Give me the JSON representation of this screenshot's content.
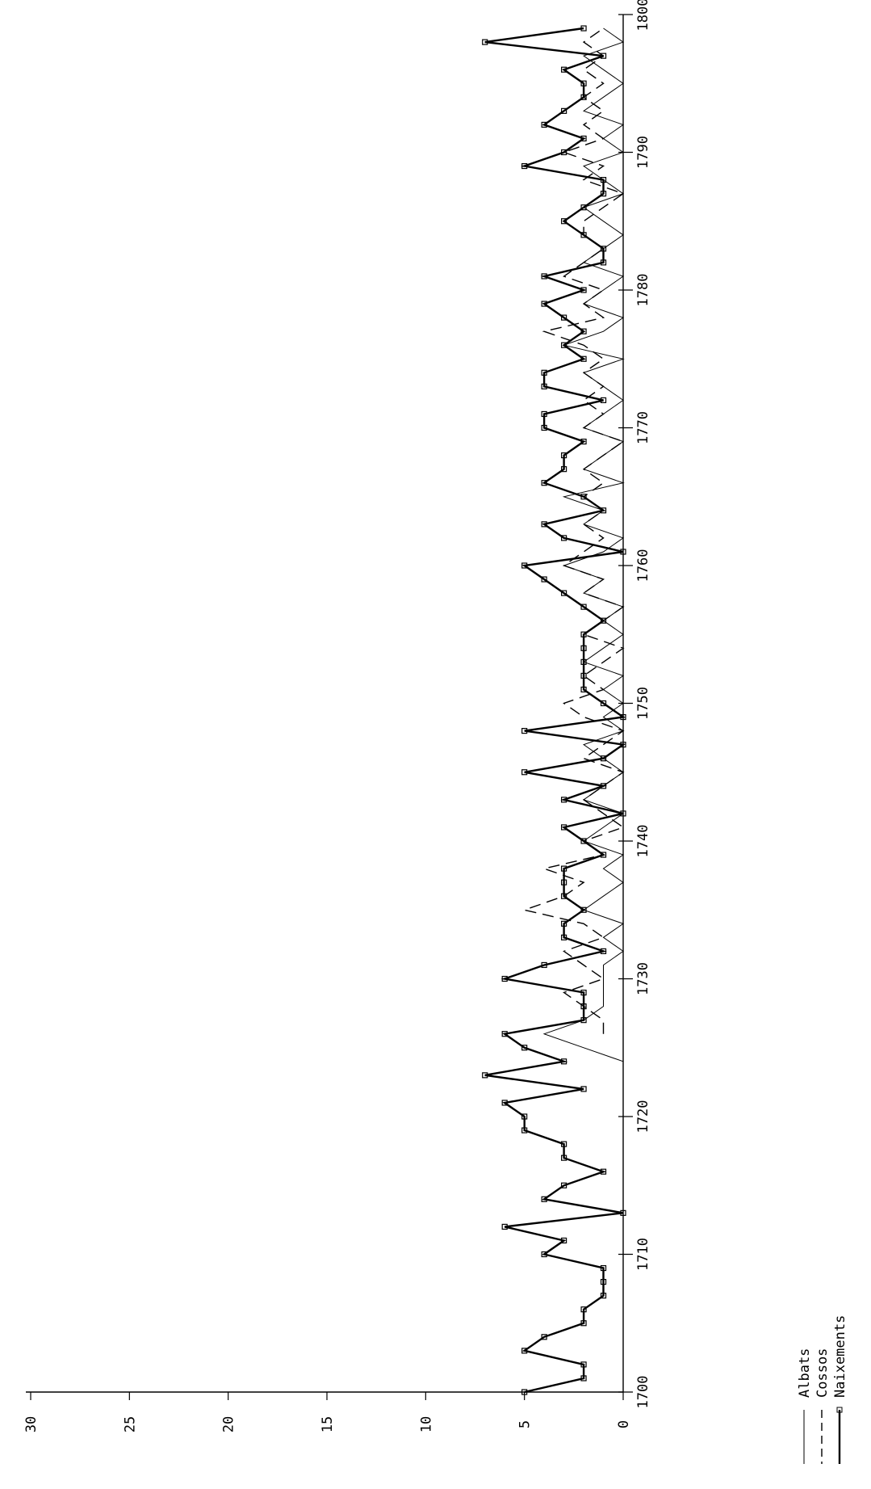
{
  "chart_data": {
    "type": "line",
    "orientation": "rotated-90",
    "title": "",
    "xlabel": "",
    "ylabel": "",
    "x_ticks": [
      "1700",
      "1710",
      "1720",
      "1730",
      "1740",
      "1750",
      "1760",
      "1770",
      "1780",
      "1790",
      "1800"
    ],
    "y_ticks": [
      "0",
      "5",
      "10",
      "15",
      "20",
      "25",
      "30"
    ],
    "xlim": [
      1700,
      1800
    ],
    "ylim": [
      0,
      30
    ],
    "grid": false,
    "legend_position": "bottom-right",
    "series": [
      {
        "name": "Albats",
        "style": "thin-solid",
        "x": [
          1724,
          1725,
          1726,
          1727,
          1728,
          1731,
          1732,
          1733,
          1734,
          1735,
          1736,
          1737,
          1738,
          1739,
          1740,
          1741,
          1742,
          1743,
          1744,
          1745,
          1746,
          1747,
          1748,
          1749,
          1750,
          1751,
          1752,
          1753,
          1754,
          1755,
          1756,
          1757,
          1758,
          1759,
          1760,
          1761,
          1762,
          1763,
          1764,
          1765,
          1766,
          1767,
          1768,
          1769,
          1770,
          1771,
          1772,
          1773,
          1774,
          1775,
          1776,
          1777,
          1778,
          1779,
          1780,
          1781,
          1782,
          1783,
          1784,
          1785,
          1786,
          1787,
          1788,
          1789,
          1790,
          1791,
          1792,
          1793,
          1794,
          1795,
          1796,
          1797,
          1798,
          1799
        ],
        "y": [
          0,
          2,
          4,
          2,
          1,
          1,
          0,
          1,
          0,
          2,
          1,
          0,
          1,
          0,
          2,
          1,
          0,
          2,
          1,
          0,
          1,
          2,
          0,
          1,
          0,
          1,
          0,
          2,
          1,
          0,
          1,
          0,
          2,
          1,
          3,
          1,
          0,
          2,
          1,
          3,
          0,
          2,
          1,
          0,
          2,
          1,
          0,
          1,
          2,
          0,
          3,
          1,
          0,
          2,
          1,
          0,
          2,
          1,
          0,
          1,
          2,
          0,
          1,
          2,
          0,
          1,
          0,
          2,
          1,
          0,
          1,
          2,
          0,
          1
        ]
      },
      {
        "name": "Cossos",
        "style": "dashed",
        "x": [
          1726,
          1727,
          1728,
          1729,
          1730,
          1731,
          1732,
          1733,
          1734,
          1735,
          1736,
          1737,
          1738,
          1739,
          1740,
          1741,
          1742,
          1743,
          1744,
          1745,
          1746,
          1747,
          1748,
          1749,
          1750,
          1751,
          1752,
          1753,
          1754,
          1755,
          1756,
          1757,
          1758,
          1759,
          1760,
          1761,
          1762,
          1763,
          1764,
          1765,
          1766,
          1767,
          1768,
          1769,
          1770,
          1771,
          1772,
          1773,
          1774,
          1775,
          1776,
          1777,
          1778,
          1779,
          1780,
          1781,
          1782,
          1783,
          1784,
          1785,
          1786,
          1787,
          1788,
          1789,
          1790,
          1791,
          1792,
          1793,
          1794,
          1795,
          1796,
          1797,
          1798,
          1799
        ],
        "y": [
          1,
          1,
          2,
          3,
          1,
          2,
          3,
          1,
          2,
          5,
          3,
          2,
          4,
          1,
          2,
          0,
          1,
          2,
          1,
          0,
          2,
          1,
          0,
          2,
          3,
          1,
          2,
          1,
          0,
          2,
          1,
          0,
          2,
          1,
          3,
          2,
          1,
          2,
          1,
          2,
          1,
          2,
          1,
          0,
          2,
          1,
          2,
          1,
          2,
          1,
          2,
          4,
          1,
          2,
          1,
          3,
          2,
          1,
          2,
          2,
          1,
          0,
          2,
          1,
          3,
          1,
          2,
          1,
          2,
          1,
          2,
          1,
          2,
          1
        ]
      },
      {
        "name": "Naixements",
        "style": "thick-solid",
        "x": [
          1700,
          1701,
          1702,
          1703,
          1704,
          1705,
          1706,
          1707,
          1708,
          1709,
          1710,
          1711,
          1712,
          1713,
          1714,
          1715,
          1716,
          1717,
          1718,
          1719,
          1720,
          1721,
          1722,
          1723,
          1724,
          1725,
          1726,
          1727,
          1728,
          1729,
          1730,
          1731,
          1732,
          1733,
          1734,
          1735,
          1736,
          1737,
          1738,
          1739,
          1740,
          1741,
          1742,
          1743,
          1744,
          1745,
          1746,
          1747,
          1748,
          1749,
          1750,
          1751,
          1752,
          1753,
          1754,
          1755,
          1756,
          1757,
          1758,
          1759,
          1760,
          1761,
          1762,
          1763,
          1764,
          1765,
          1766,
          1767,
          1768,
          1769,
          1770,
          1771,
          1772,
          1773,
          1774,
          1775,
          1776,
          1777,
          1778,
          1779,
          1780,
          1781,
          1782,
          1783,
          1784,
          1785,
          1786,
          1787,
          1788,
          1789,
          1790,
          1791,
          1792,
          1793,
          1794,
          1795,
          1796,
          1797,
          1798,
          1799
        ],
        "y": [
          5,
          2,
          2,
          5,
          4,
          2,
          2,
          1,
          1,
          1,
          4,
          3,
          6,
          0,
          4,
          3,
          1,
          3,
          3,
          5,
          5,
          6,
          2,
          7,
          3,
          5,
          6,
          2,
          2,
          2,
          6,
          4,
          1,
          3,
          3,
          2,
          3,
          3,
          3,
          1,
          2,
          3,
          0,
          3,
          1,
          5,
          1,
          0,
          5,
          0,
          1,
          2,
          2,
          2,
          2,
          2,
          1,
          2,
          3,
          4,
          5,
          0,
          3,
          4,
          1,
          2,
          4,
          3,
          3,
          2,
          4,
          4,
          1,
          4,
          4,
          2,
          3,
          2,
          3,
          4,
          2,
          4,
          1,
          1,
          2,
          3,
          2,
          1,
          1,
          5,
          3,
          2,
          4,
          3,
          2,
          2,
          3,
          1,
          7,
          2
        ]
      }
    ]
  },
  "colors": {
    "ink": "#000000",
    "background": "#ffffff"
  }
}
